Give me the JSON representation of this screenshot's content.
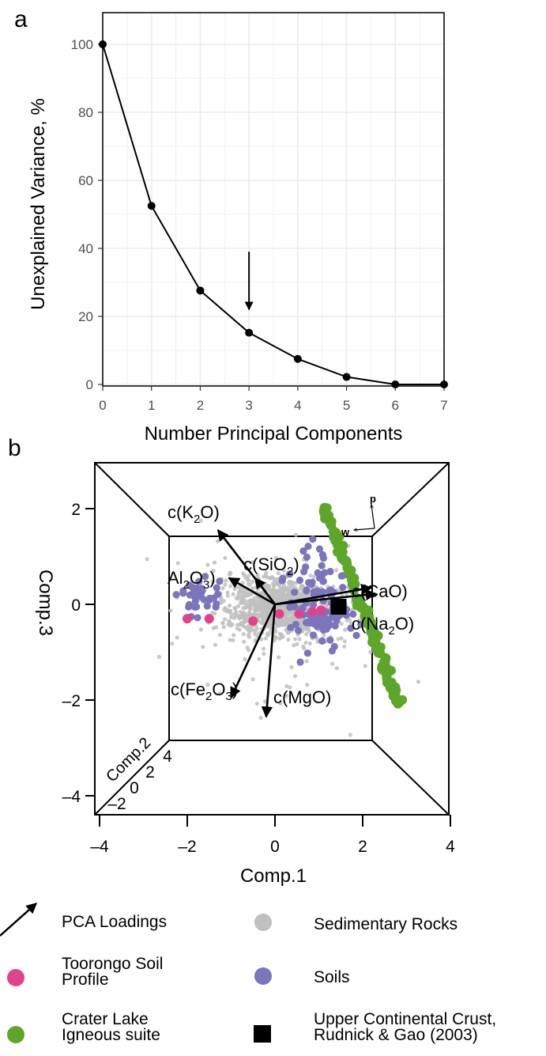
{
  "panel_a": {
    "label": "a",
    "xlabel": "Number Principal Components",
    "ylabel": "Unexplained Variance, %"
  },
  "panel_b": {
    "label": "b",
    "xlabel": "Comp.1",
    "ylabel": "Comp.3",
    "zlabel": "Comp.2",
    "compass": {
      "p": "p",
      "w": "w"
    }
  },
  "chart_data": [
    {
      "type": "line",
      "x": [
        0,
        1,
        2,
        3,
        4,
        5,
        6,
        7
      ],
      "y": [
        100,
        52.5,
        27.6,
        15.2,
        7.5,
        2.2,
        0,
        0
      ],
      "xlabel": "Number Principal Components",
      "ylabel": "Unexplained Variance, %",
      "xlim": [
        0,
        7
      ],
      "ylim": [
        0,
        100
      ],
      "xticks": [
        "0",
        "1",
        "2",
        "3",
        "4",
        "5",
        "6",
        "7"
      ],
      "yticks": [
        "0",
        "20",
        "40",
        "60",
        "80",
        "100"
      ],
      "grid": true,
      "annotation": {
        "type": "arrow",
        "x": 3,
        "y_from": 39,
        "y_to": 22
      }
    },
    {
      "type": "scatter",
      "projection": "3d-box",
      "xlabel": "Comp.1",
      "ylabel": "Comp.3",
      "zlabel": "Comp.2",
      "xlim": [
        -4,
        4
      ],
      "ylim": [
        -4,
        2.5
      ],
      "xticks": [
        "–4",
        "–2",
        "0",
        "2",
        "4"
      ],
      "yticks": [
        "–4",
        "–2",
        "0",
        "2"
      ],
      "zticks": [
        "–2",
        "0",
        "2",
        "4"
      ],
      "loadings": [
        {
          "name": "K2O",
          "x": -1.3,
          "y": 1.55
        },
        {
          "name": "SiO2",
          "x": -0.45,
          "y": 0.55
        },
        {
          "name": "Al2O3",
          "x": -1.05,
          "y": 0.55
        },
        {
          "name": "CaO",
          "x": 2.2,
          "y": 0.35
        },
        {
          "name": "Na2O",
          "x": 2.3,
          "y": 0.22
        },
        {
          "name": "Fe2O3",
          "x": -1.0,
          "y": -1.95
        },
        {
          "name": "MgO",
          "x": -0.2,
          "y": -2.35
        }
      ],
      "series": [
        {
          "name": "Sedimentary Rocks",
          "color": "#c0c0c0"
        },
        {
          "name": "Soils",
          "color": "#7b75bb"
        },
        {
          "name": "Toorongo Soil Profile",
          "color": "#e2428c",
          "points": [
            [
              -2.0,
              -0.3
            ],
            [
              -1.5,
              -0.3
            ],
            [
              -0.5,
              -0.35
            ],
            [
              0.1,
              -0.2
            ],
            [
              0.55,
              -0.2
            ],
            [
              0.85,
              -0.15
            ],
            [
              1.05,
              -0.12
            ],
            [
              1.35,
              -0.08
            ]
          ]
        },
        {
          "name": "Crater Lake Igneous suite",
          "color": "#5ea62a"
        },
        {
          "name": "Upper Continental Crust, Rudnick & Gao (2003)",
          "color": "#000000",
          "points": [
            [
              1.45,
              -0.05
            ]
          ]
        }
      ]
    }
  ],
  "legend": [
    {
      "label": "PCA Loadings",
      "symbol": "arrow"
    },
    {
      "label": "Sedimentary Rocks",
      "symbol": "circle",
      "color": "#c0c0c0"
    },
    {
      "label": "Toorongo Soil Profile",
      "symbol": "circle",
      "color": "#e2428c"
    },
    {
      "label": "Soils",
      "symbol": "circle",
      "color": "#7b75bb"
    },
    {
      "label": "Crater Lake Igneous suite",
      "symbol": "circle",
      "color": "#5ea62a"
    },
    {
      "label": "Upper Continental Crust, Rudnick & Gao (2003)",
      "symbol": "square",
      "color": "#000000"
    }
  ]
}
